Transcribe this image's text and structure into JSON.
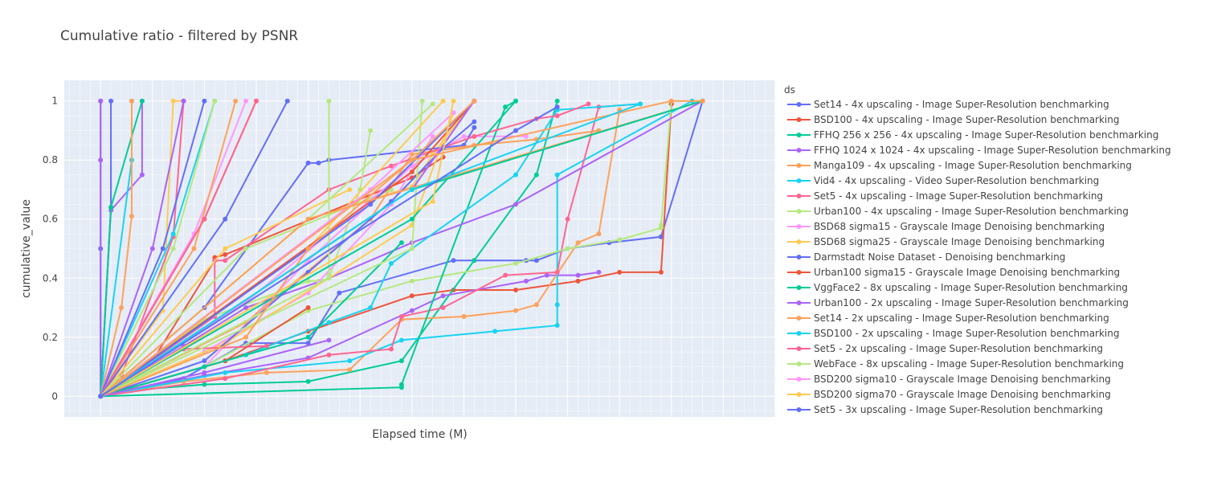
{
  "chart_data": {
    "type": "line",
    "title": "Cumulative ratio - filtered by PSNR",
    "xlabel": "Elapsed time (M)",
    "ylabel": "cumulative_value",
    "xlim": [
      -3.5,
      65
    ],
    "ylim": [
      -0.07,
      1.07
    ],
    "yticks": [
      0,
      0.2,
      0.4,
      0.6,
      0.8,
      1
    ],
    "ytick_labels": [
      "0",
      "0.2",
      "0.4",
      "0.6",
      "0.8",
      "1"
    ],
    "grid": true,
    "legend_title": "ds",
    "legend_position": "right",
    "series": [
      {
        "name": "Set14 - 4x upscaling - Image Super-Resolution benchmarking",
        "color": "#636efa",
        "x": [
          0,
          8,
          14,
          20,
          23,
          34,
          36,
          41,
          42,
          45,
          49,
          54,
          54,
          58
        ],
        "y": [
          0,
          0.06,
          0.18,
          0.18,
          0.35,
          0.46,
          0.46,
          0.46,
          0.46,
          0.5,
          0.52,
          0.54,
          0.54,
          1
        ]
      },
      {
        "name": "BSD100 - 4x upscaling - Image Super-Resolution benchmarking",
        "color": "#ef553b",
        "x": [
          0,
          12,
          20,
          30,
          34,
          40,
          46,
          50,
          54,
          55,
          55
        ],
        "y": [
          0,
          0.12,
          0.22,
          0.34,
          0.36,
          0.36,
          0.39,
          0.42,
          0.42,
          0.99,
          0.99
        ]
      },
      {
        "name": "FFHQ 256 x 256 - 4x upscaling - Image Super-Resolution benchmarking",
        "color": "#00cc96",
        "x": [
          0,
          3,
          10,
          20,
          29,
          36,
          42,
          44
        ],
        "y": [
          0,
          0.02,
          0.04,
          0.05,
          0.12,
          0.46,
          0.75,
          1
        ]
      },
      {
        "name": "FFHQ 1024 x 1024 - 4x upscaling - Image Super-Resolution benchmarking",
        "color": "#ab63fa",
        "x": [
          0,
          10,
          20,
          30,
          33,
          41,
          43,
          46,
          48
        ],
        "y": [
          0,
          0.07,
          0.13,
          0.29,
          0.34,
          0.39,
          0.41,
          0.41,
          0.42
        ]
      },
      {
        "name": "Manga109 - 4x upscaling - Image Super-Resolution benchmarking",
        "color": "#ffa15a",
        "x": [
          0,
          8,
          16,
          24,
          29,
          35,
          40,
          42,
          46,
          48,
          50
        ],
        "y": [
          0,
          0.05,
          0.08,
          0.09,
          0.26,
          0.27,
          0.29,
          0.31,
          0.52,
          0.55,
          0.97
        ]
      },
      {
        "name": "Vid4 - 4x upscaling - Video Super-Resolution benchmarking",
        "color": "#19d3f3",
        "x": [
          0,
          12,
          24,
          29,
          38,
          44,
          44,
          44,
          57
        ],
        "y": [
          0,
          0.08,
          0.12,
          0.19,
          0.22,
          0.24,
          0.31,
          0.75,
          1
        ]
      },
      {
        "name": "Set5 - 4x upscaling - Image Super-Resolution benchmarking",
        "color": "#ff6692",
        "x": [
          0,
          12,
          22,
          28,
          29,
          33,
          39,
          44,
          45,
          48,
          52
        ],
        "y": [
          0,
          0.06,
          0.14,
          0.16,
          0.27,
          0.3,
          0.41,
          0.42,
          0.6,
          0.98,
          0.99
        ]
      },
      {
        "name": "Urban100 - 4x upscaling - Image Super-Resolution benchmarking",
        "color": "#b6e880",
        "x": [
          0,
          10,
          20,
          30,
          40,
          45,
          50,
          54,
          54,
          55
        ],
        "y": [
          0,
          0.1,
          0.29,
          0.39,
          0.45,
          0.5,
          0.53,
          0.57,
          0.58,
          1
        ]
      },
      {
        "name": "BSD68 sigma15 - Grayscale Image Denoising benchmarking",
        "color": "#ff97ff",
        "x": [
          0,
          10,
          20,
          30,
          35,
          41
        ],
        "y": [
          0,
          0.1,
          0.46,
          0.78,
          0.88,
          0.88
        ]
      },
      {
        "name": "BSD68 sigma25 - Grayscale Image Denoising benchmarking",
        "color": "#fecb52",
        "x": [
          0,
          10,
          20,
          30,
          32,
          36
        ],
        "y": [
          0,
          0.3,
          0.6,
          0.71,
          0.82,
          1
        ]
      },
      {
        "name": "Darmstadt Noise Dataset - Denoising benchmarking",
        "color": "#636efa",
        "x": [
          0,
          10,
          20,
          21,
          22,
          35,
          36
        ],
        "y": [
          0,
          0.3,
          0.79,
          0.79,
          0.8,
          0.85,
          0.91
        ]
      },
      {
        "name": "Urban100 sigma15 - Grayscale Image Denoising benchmarking",
        "color": "#ef553b",
        "x": [
          0,
          5,
          11,
          11,
          12,
          30,
          33
        ],
        "y": [
          0,
          0.12,
          0.46,
          0.47,
          0.48,
          0.74,
          0.81
        ]
      },
      {
        "name": "VggFace2 - 8x upscaling - Image Super-Resolution benchmarking",
        "color": "#00cc96",
        "x": [
          0,
          29,
          29,
          39,
          40
        ],
        "y": [
          0,
          0.03,
          0.04,
          0.98,
          1
        ]
      },
      {
        "name": "Urban100 - 2x upscaling - Image Super-Resolution benchmarking",
        "color": "#ab63fa",
        "x": [
          0,
          8,
          14,
          22,
          30,
          40,
          58
        ],
        "y": [
          0,
          0.17,
          0.3,
          0.4,
          0.52,
          0.65,
          1
        ]
      },
      {
        "name": "Set14 - 2x upscaling - Image Super-Resolution benchmarking",
        "color": "#ffa15a",
        "x": [
          0,
          14,
          26,
          30,
          36,
          42,
          48
        ],
        "y": [
          0,
          0.25,
          0.6,
          0.82,
          0.85,
          0.87,
          0.9
        ]
      },
      {
        "name": "BSD100 - 2x upscaling - Image Super-Resolution benchmarking",
        "color": "#19d3f3",
        "x": [
          0,
          14,
          22,
          26,
          28,
          40,
          44,
          52
        ],
        "y": [
          0,
          0.14,
          0.25,
          0.3,
          0.45,
          0.75,
          0.97,
          0.99
        ]
      },
      {
        "name": "Set5 - 2x upscaling - Image Super-Resolution benchmarking",
        "color": "#ff6692",
        "x": [
          0,
          11,
          11,
          12,
          22,
          28,
          36,
          42,
          44,
          47
        ],
        "y": [
          0,
          0.27,
          0.46,
          0.46,
          0.7,
          0.78,
          0.88,
          0.94,
          0.95,
          0.99
        ]
      },
      {
        "name": "WebFace - 8x upscaling - Image Super-Resolution benchmarking",
        "color": "#b6e880",
        "x": [
          0,
          10,
          20,
          21,
          22,
          25,
          26
        ],
        "y": [
          0,
          0.26,
          0.39,
          0.39,
          0.4,
          0.7,
          0.9
        ]
      },
      {
        "name": "BSD200 sigma10 - Grayscale Image Denoising benchmarking",
        "color": "#ff97ff",
        "x": [
          0,
          10,
          20,
          28,
          32
        ],
        "y": [
          0,
          0.15,
          0.35,
          0.65,
          0.88
        ]
      },
      {
        "name": "BSD200 sigma70 - Grayscale Image Denoising benchmarking",
        "color": "#fecb52",
        "x": [
          0,
          12,
          22,
          30,
          34
        ],
        "y": [
          0,
          0.18,
          0.4,
          0.58,
          0.96
        ]
      },
      {
        "name": "Set5 - 3x upscaling - Image Super-Resolution benchmarking",
        "color": "#636efa",
        "x": [
          0,
          10,
          20,
          28,
          33,
          36
        ],
        "y": [
          0,
          0.12,
          0.42,
          0.66,
          0.84,
          0.93
        ]
      },
      {
        "name": "",
        "color": "#636efa",
        "x": [
          0,
          1,
          1
        ],
        "y": [
          0,
          0.64,
          1
        ]
      },
      {
        "name": "",
        "color": "#636efa",
        "x": [
          0,
          0,
          0
        ],
        "y": [
          0,
          0.5,
          1
        ]
      },
      {
        "name": "",
        "color": "#ab63fa",
        "x": [
          0,
          0,
          0
        ],
        "y": [
          0,
          0.8,
          1
        ]
      },
      {
        "name": "",
        "color": "#ab63fa",
        "x": [
          0,
          1,
          4,
          4
        ],
        "y": [
          0,
          0.63,
          0.75,
          1
        ]
      },
      {
        "name": "",
        "color": "#00cc96",
        "x": [
          0,
          1,
          4
        ],
        "y": [
          0,
          0.64,
          1
        ]
      },
      {
        "name": "",
        "color": "#19d3f3",
        "x": [
          0,
          3,
          3
        ],
        "y": [
          0,
          0.8,
          1
        ]
      },
      {
        "name": "",
        "color": "#ffa15a",
        "x": [
          0,
          2,
          3,
          3
        ],
        "y": [
          0,
          0.3,
          0.61,
          1
        ]
      },
      {
        "name": "",
        "color": "#fecb52",
        "x": [
          0,
          6,
          7,
          8
        ],
        "y": [
          0,
          0.29,
          1,
          1
        ]
      },
      {
        "name": "",
        "color": "#ff6692",
        "x": [
          0,
          2,
          7,
          8
        ],
        "y": [
          0,
          0.07,
          0.54,
          1
        ]
      },
      {
        "name": "",
        "color": "#19d3f3",
        "x": [
          0,
          7,
          11
        ],
        "y": [
          0,
          0.55,
          1
        ]
      },
      {
        "name": "",
        "color": "#b6e880",
        "x": [
          0,
          7,
          11
        ],
        "y": [
          0,
          0.5,
          1
        ]
      },
      {
        "name": "",
        "color": "#ab63fa",
        "x": [
          0,
          5,
          8
        ],
        "y": [
          0,
          0.5,
          1
        ]
      },
      {
        "name": "",
        "color": "#636efa",
        "x": [
          0,
          6,
          10
        ],
        "y": [
          0,
          0.5,
          1
        ]
      },
      {
        "name": "",
        "color": "#ff97ff",
        "x": [
          0,
          9,
          14
        ],
        "y": [
          0,
          0.55,
          1
        ]
      },
      {
        "name": "",
        "color": "#ffa15a",
        "x": [
          0,
          9,
          13
        ],
        "y": [
          0,
          0.5,
          1
        ]
      },
      {
        "name": "",
        "color": "#ef553b",
        "x": [
          0,
          10,
          15
        ],
        "y": [
          0,
          0.6,
          1
        ]
      },
      {
        "name": "",
        "color": "#ff6692",
        "x": [
          0,
          10,
          15
        ],
        "y": [
          0,
          0.6,
          1
        ]
      },
      {
        "name": "",
        "color": "#636efa",
        "x": [
          0,
          12,
          18
        ],
        "y": [
          0,
          0.6,
          1
        ]
      },
      {
        "name": "",
        "color": "#ff6692",
        "x": [
          0,
          8,
          16
        ],
        "y": [
          0,
          0.16,
          0.17
        ]
      },
      {
        "name": "",
        "color": "#fecb52",
        "x": [
          0,
          12,
          24
        ],
        "y": [
          0,
          0.5,
          0.7
        ]
      },
      {
        "name": "",
        "color": "#b6e880",
        "x": [
          0,
          14,
          28
        ],
        "y": [
          0,
          0.5,
          0.7
        ]
      },
      {
        "name": "",
        "color": "#ef553b",
        "x": [
          0,
          12,
          20
        ],
        "y": [
          0,
          0.12,
          0.3
        ]
      },
      {
        "name": "",
        "color": "#ff97ff",
        "x": [
          0,
          14,
          30
        ],
        "y": [
          0,
          0.32,
          0.78
        ]
      },
      {
        "name": "",
        "color": "#00cc96",
        "x": [
          0,
          10,
          20,
          29
        ],
        "y": [
          0,
          0.1,
          0.2,
          0.52
        ]
      },
      {
        "name": "",
        "color": "#ab63fa",
        "x": [
          0,
          10,
          22
        ],
        "y": [
          0,
          0.08,
          0.19
        ]
      },
      {
        "name": "",
        "color": "#b6e880",
        "x": [
          0,
          22,
          22,
          22,
          22
        ],
        "y": [
          0,
          0.4,
          0.41,
          1,
          1
        ]
      },
      {
        "name": "",
        "color": "#b6e880",
        "x": [
          0,
          30,
          31
        ],
        "y": [
          0,
          0.5,
          1
        ]
      },
      {
        "name": "",
        "color": "#b6e880",
        "x": [
          0,
          20,
          32
        ],
        "y": [
          0,
          0.6,
          0.99
        ]
      },
      {
        "name": "",
        "color": "#fecb52",
        "x": [
          0,
          20,
          33
        ],
        "y": [
          0,
          0.5,
          1
        ]
      },
      {
        "name": "",
        "color": "#00cc96",
        "x": [
          0,
          30,
          40
        ],
        "y": [
          0,
          0.6,
          1
        ]
      },
      {
        "name": "",
        "color": "#ff97ff",
        "x": [
          0,
          26,
          34
        ],
        "y": [
          0,
          0.7,
          0.96
        ]
      },
      {
        "name": "",
        "color": "#ef553b",
        "x": [
          0,
          30,
          36
        ],
        "y": [
          0,
          0.76,
          1
        ]
      },
      {
        "name": "",
        "color": "#636efa",
        "x": [
          0,
          26,
          36
        ],
        "y": [
          0,
          0.65,
          1
        ]
      },
      {
        "name": "",
        "color": "#ab63fa",
        "x": [
          0,
          30,
          36
        ],
        "y": [
          0,
          0.7,
          1
        ]
      },
      {
        "name": "",
        "color": "#ffa15a",
        "x": [
          0,
          30,
          36
        ],
        "y": [
          0,
          0.8,
          1
        ]
      },
      {
        "name": "",
        "color": "#fecb52",
        "x": [
          0,
          32,
          34
        ],
        "y": [
          0,
          0.66,
          1
        ]
      },
      {
        "name": "",
        "color": "#ffa15a",
        "x": [
          0,
          20,
          58
        ],
        "y": [
          0,
          0.6,
          1
        ]
      },
      {
        "name": "",
        "color": "#00cc96",
        "x": [
          0,
          30,
          58
        ],
        "y": [
          0,
          0.7,
          1
        ]
      },
      {
        "name": "",
        "color": "#ffa15a",
        "x": [
          0,
          14,
          20,
          30,
          55,
          58
        ],
        "y": [
          0,
          0.2,
          0.5,
          0.8,
          1,
          1
        ]
      },
      {
        "name": "",
        "color": "#19d3f3",
        "x": [
          0,
          30,
          52
        ],
        "y": [
          0,
          0.7,
          0.99
        ]
      },
      {
        "name": "",
        "color": "#636efa",
        "x": [
          0,
          40,
          44
        ],
        "y": [
          0,
          0.9,
          0.98
        ]
      }
    ]
  }
}
